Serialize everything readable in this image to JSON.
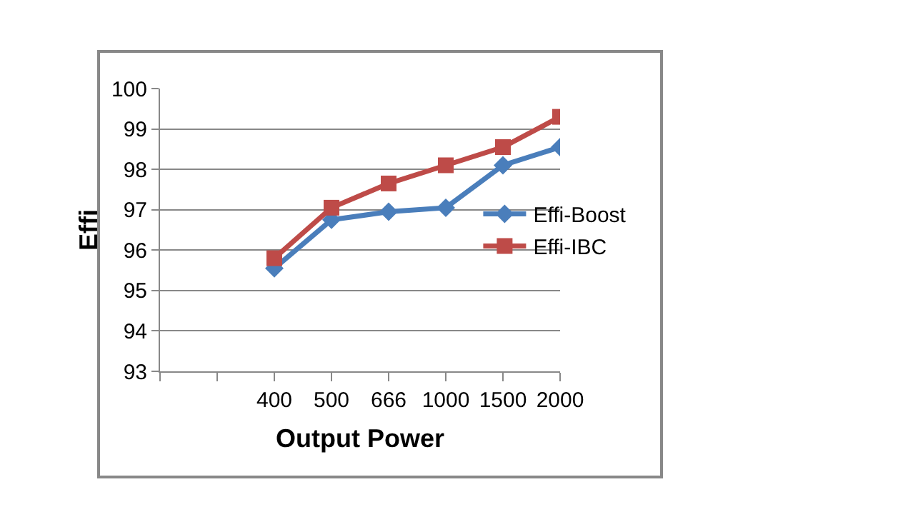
{
  "chart_data": {
    "type": "line",
    "xlabel": "Output Power",
    "ylabel": "Effi",
    "categories": [
      null,
      null,
      "400",
      "500",
      "666",
      "1000",
      "1500",
      "2000"
    ],
    "series": [
      {
        "name": "Effi-Boost",
        "color": "#4a7ebb",
        "marker": "diamond",
        "values": [
          null,
          null,
          95.55,
          96.75,
          96.95,
          97.05,
          98.1,
          98.55
        ]
      },
      {
        "name": "Effi-IBC",
        "color": "#be4b48",
        "marker": "square",
        "values": [
          null,
          null,
          95.8,
          97.05,
          97.65,
          98.1,
          98.55,
          99.3
        ]
      }
    ],
    "ylim": [
      93,
      100
    ],
    "yticks": [
      93,
      94,
      95,
      96,
      97,
      98,
      99,
      100
    ],
    "grid": "y",
    "legend": "right",
    "line_style": "solid"
  }
}
